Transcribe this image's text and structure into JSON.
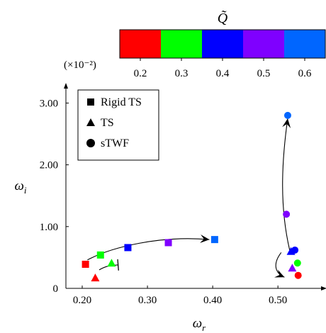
{
  "chart_data": {
    "type": "scatter",
    "colorbar": {
      "title": "Q̃",
      "ticks": [
        "0.2",
        "0.3",
        "0.4",
        "0.5",
        "0.6"
      ],
      "colors": [
        "#ff0000",
        "#00ff00",
        "#0000ff",
        "#7f00ff",
        "#0066ff"
      ]
    },
    "xlabel": "ω_r",
    "ylabel": "ω_i",
    "y_multiplier": "(×10⁻²)",
    "xlim": [
      0.175,
      0.565
    ],
    "ylim": [
      0,
      3.2
    ],
    "xticks": [
      0.2,
      0.3,
      0.4,
      0.5
    ],
    "xtick_labels": [
      "0.20",
      "0.30",
      "0.40",
      "0.50"
    ],
    "yticks": [
      0,
      1,
      2,
      3
    ],
    "ytick_labels": [
      "0",
      "1.00",
      "2.00",
      "3.00"
    ],
    "legend": {
      "position": "top-left",
      "entries": [
        {
          "label": "Rigid TS",
          "marker": "square"
        },
        {
          "label": "TS",
          "marker": "triangle"
        },
        {
          "label": "sTWF",
          "marker": "circle"
        }
      ]
    },
    "series": [
      {
        "name": "Rigid TS",
        "marker": "square",
        "points": [
          {
            "x": 0.205,
            "y": 0.39,
            "color": "#ff0000"
          },
          {
            "x": 0.228,
            "y": 0.54,
            "color": "#00ff00"
          },
          {
            "x": 0.27,
            "y": 0.66,
            "color": "#0000ff"
          },
          {
            "x": 0.332,
            "y": 0.74,
            "color": "#7f00ff"
          },
          {
            "x": 0.403,
            "y": 0.79,
            "color": "#0066ff"
          }
        ]
      },
      {
        "name": "TS",
        "marker": "triangle",
        "points": [
          {
            "x": 0.22,
            "y": 0.17,
            "color": "#ff0000"
          },
          {
            "x": 0.245,
            "y": 0.41,
            "color": "#00ff00"
          },
          {
            "x": 0.522,
            "y": 0.33,
            "color": "#7f00ff"
          },
          {
            "x": 0.52,
            "y": 0.6,
            "color": "#0000ff"
          }
        ]
      },
      {
        "name": "sTWF",
        "marker": "circle",
        "points": [
          {
            "x": 0.531,
            "y": 0.21,
            "color": "#ff0000"
          },
          {
            "x": 0.53,
            "y": 0.41,
            "color": "#00ff00"
          },
          {
            "x": 0.526,
            "y": 0.62,
            "color": "#0000ff"
          },
          {
            "x": 0.513,
            "y": 1.2,
            "color": "#7f00ff"
          },
          {
            "x": 0.515,
            "y": 2.8,
            "color": "#0066ff"
          }
        ]
      }
    ],
    "arrows": [
      {
        "path": [
          [
            0.208,
            0.46
          ],
          [
            0.245,
            0.67
          ],
          [
            0.32,
            0.86
          ],
          [
            0.395,
            0.79
          ]
        ],
        "head": "end"
      },
      {
        "path": [
          [
            0.226,
            0.3
          ],
          [
            0.238,
            0.37
          ],
          [
            0.243,
            0.37
          ],
          [
            0.255,
            0.38
          ]
        ],
        "head": "bar"
      },
      {
        "path": [
          [
            0.518,
            0.62
          ],
          [
            0.503,
            1.3
          ],
          [
            0.505,
            2.0
          ],
          [
            0.515,
            2.75
          ]
        ],
        "head": "end"
      },
      {
        "path": [
          [
            0.505,
            0.58
          ],
          [
            0.492,
            0.4
          ],
          [
            0.495,
            0.25
          ],
          [
            0.51,
            0.18
          ]
        ],
        "head": "end"
      }
    ]
  }
}
